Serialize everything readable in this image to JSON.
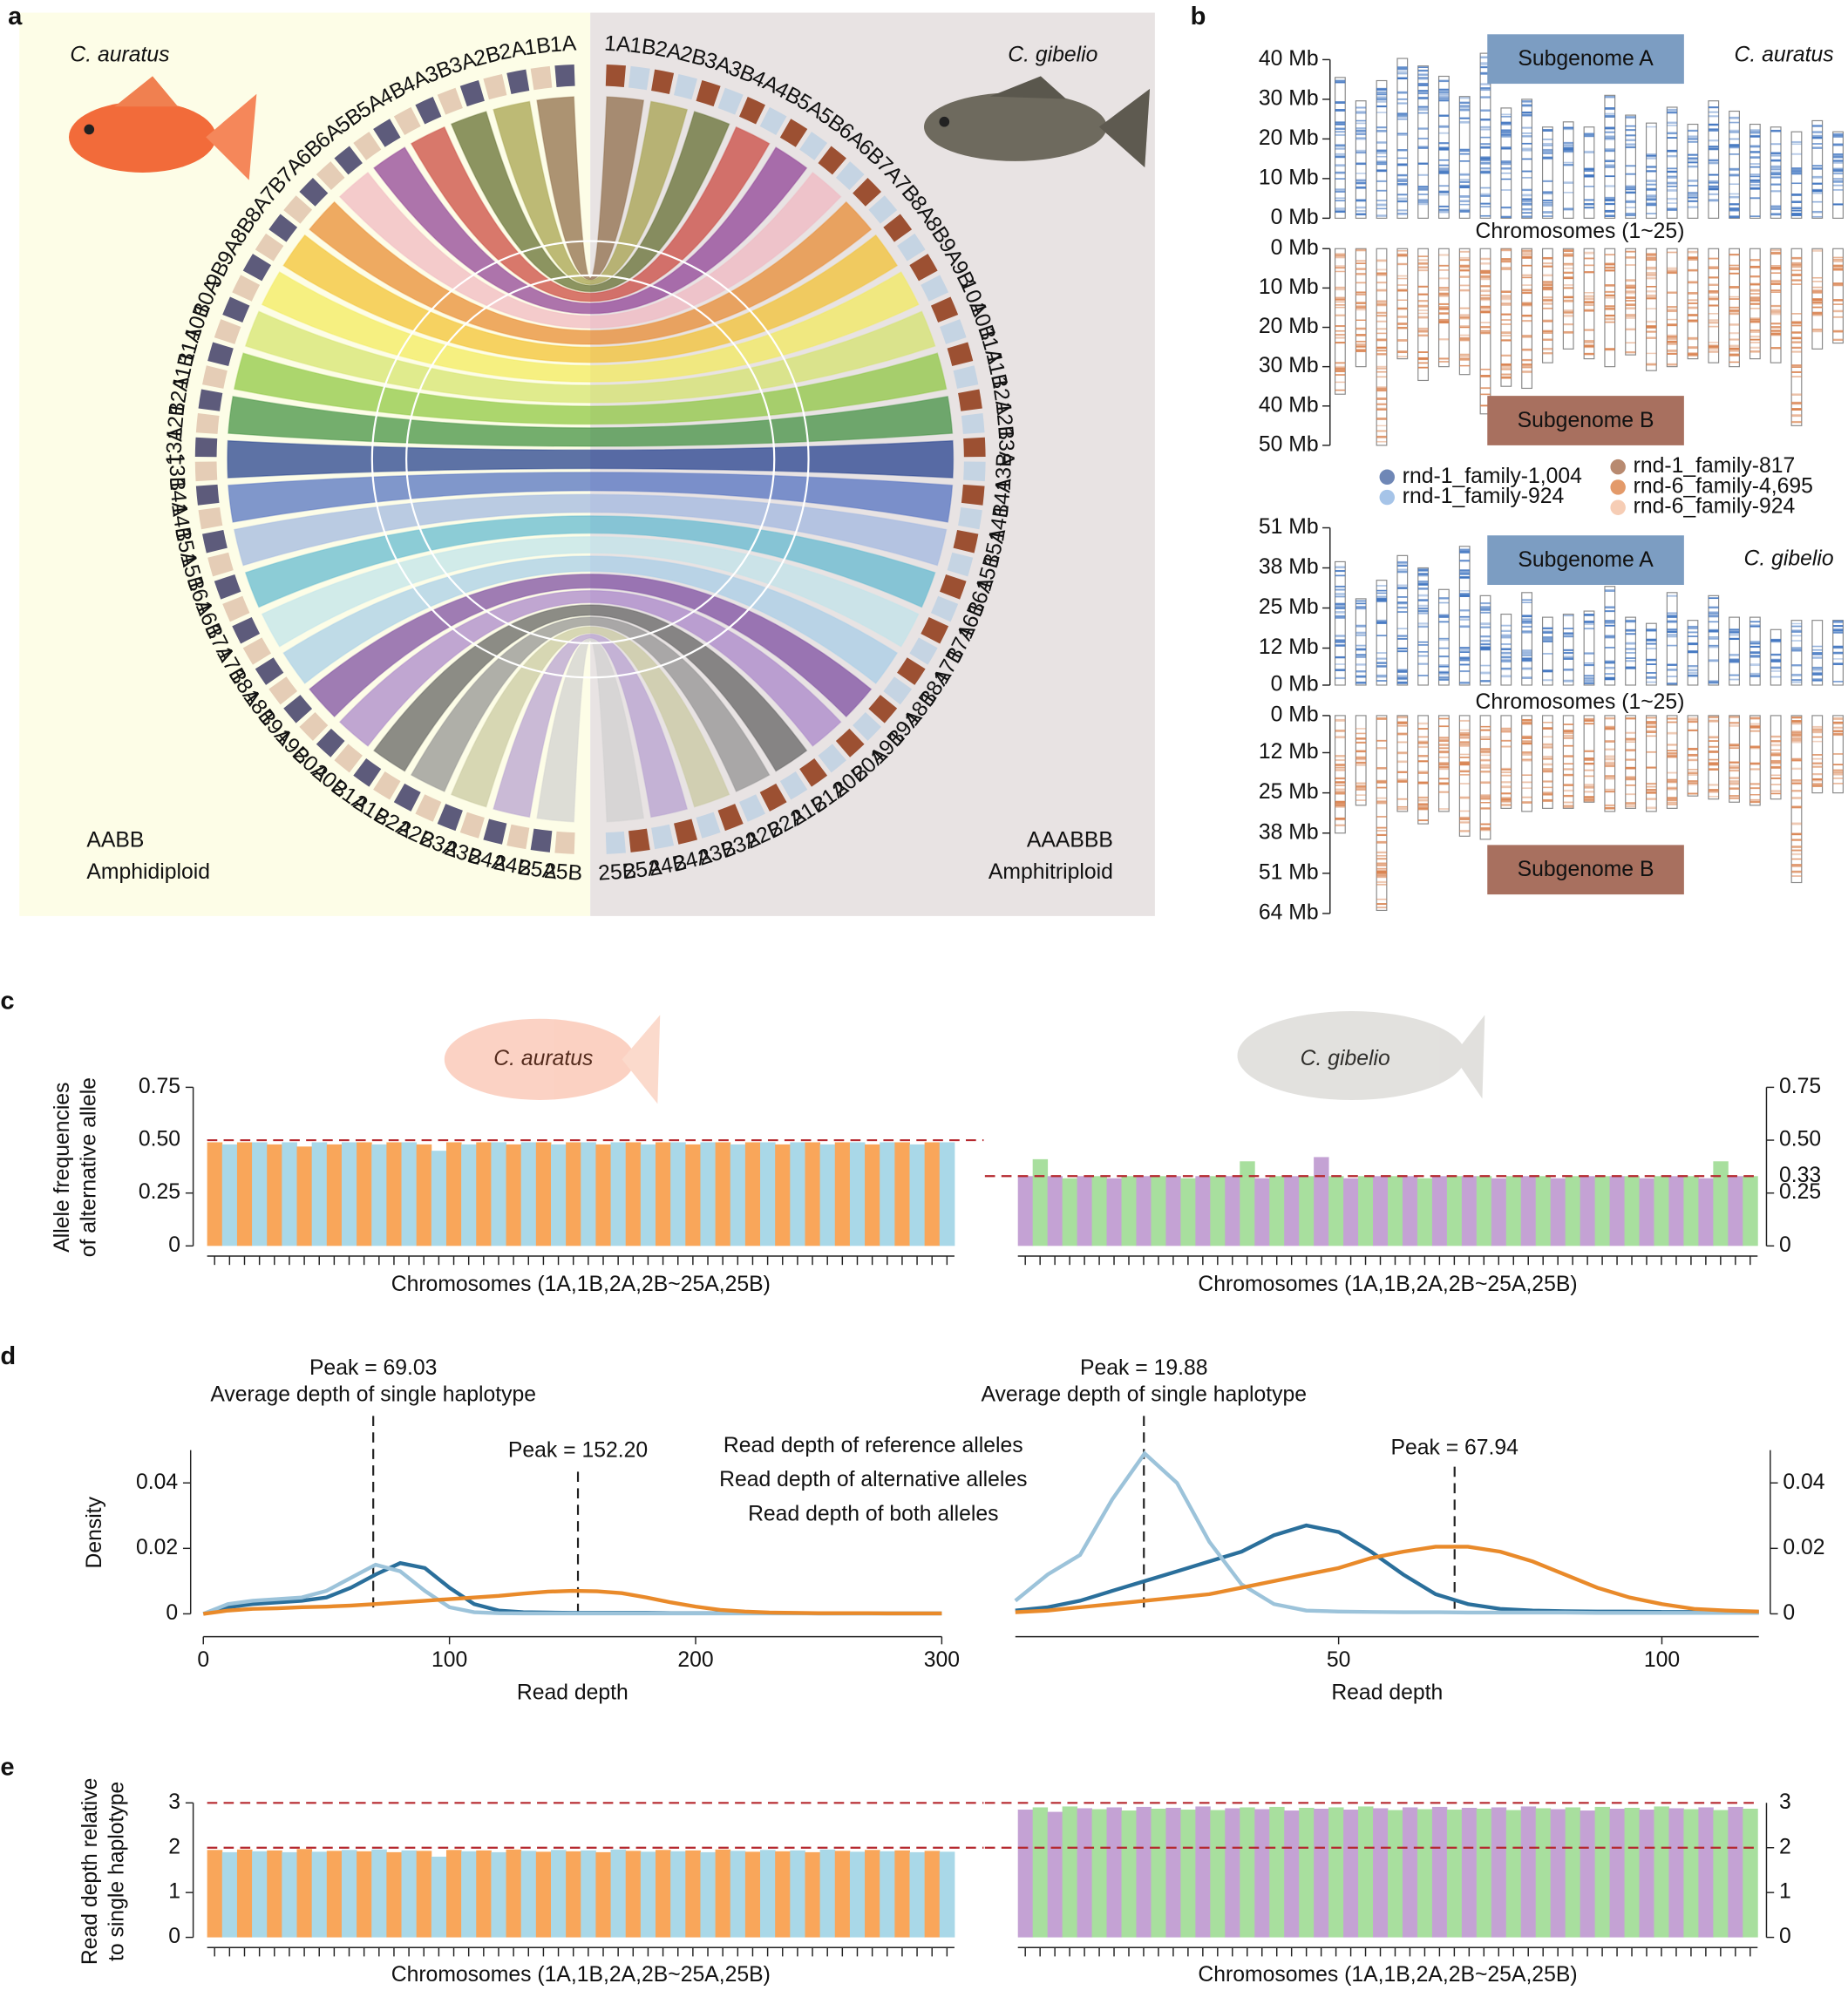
{
  "panel_labels": [
    "a",
    "b",
    "c",
    "d",
    "e"
  ],
  "chart_data": [
    {
      "type": "circos",
      "species": [
        "C. auratus",
        "C. gibelio"
      ],
      "ploidy": [
        [
          "AABB",
          "Amphidiploid"
        ],
        [
          "AAABBB",
          "Amphitriploid"
        ]
      ],
      "labels": [
        [
          "1A",
          "1B",
          "2A",
          "2B",
          "3A",
          "3B",
          "4A",
          "4B",
          "5A",
          "5B",
          "6A",
          "6B",
          "7A",
          "7B",
          "8A",
          "8B",
          "9A",
          "9B",
          "10A",
          "10B",
          "11A",
          "11B",
          "12A",
          "12B",
          "13A",
          "13B",
          "14A",
          "14B",
          "15A",
          "15B",
          "16A",
          "16B",
          "17A",
          "17B",
          "18A",
          "18B",
          "19A",
          "19B",
          "20A",
          "20B",
          "21A",
          "21B",
          "22A",
          "22B",
          "23A",
          "23B",
          "24A",
          "24B",
          "25A",
          "25B"
        ],
        [
          "1A",
          "1B",
          "2A",
          "2B",
          "3A",
          "3B",
          "4A",
          "4B",
          "5A",
          "5B",
          "6A",
          "6B",
          "7A",
          "7B",
          "8A",
          "8B",
          "9A",
          "9B",
          "10A",
          "10B",
          "11A",
          "11B",
          "12A",
          "12B",
          "13A",
          "13B",
          "14A",
          "14B",
          "15A",
          "15B",
          "16A",
          "16B",
          "17A",
          "17B",
          "18A",
          "18B",
          "19A",
          "19B",
          "20A",
          "20B",
          "21A",
          "21B",
          "22A",
          "22B",
          "23A",
          "23B",
          "24A",
          "24B",
          "25A",
          "25B"
        ]
      ],
      "segment_colors": [
        [
          "#5d5b7b",
          "#e5cdb6"
        ],
        [
          "#9c5032",
          "#c5d4e3"
        ]
      ],
      "link_colors": [
        "#8c6a45",
        "#a3a04a",
        "#5f6b2c",
        "#c9443c",
        "#8e3f94",
        "#f0b7c0",
        "#e8892e",
        "#f2c12e",
        "#f3ea5a",
        "#d4e36b",
        "#8cc63f",
        "#3f8f3f",
        "#1e3c8c",
        "#4f6fc0",
        "#9fb7e0",
        "#5fb8d0",
        "#bfe3ea",
        "#a6cde8",
        "#7a4aa0",
        "#a784c9",
        "#606060",
        "#909090",
        "#c8c8a0",
        "#b5a0d0",
        "#d0d0d0"
      ],
      "backgrounds": [
        "#fdfde7",
        "#e8e3e3"
      ]
    },
    {
      "type": "ideogram",
      "title": "C. auratus",
      "xlabel": "Chromosomes (1~25)",
      "panels": [
        {
          "name": "Subgenome A",
          "color": "#7c9dc2",
          "band_color": "#3f74c0",
          "ylim": [
            0,
            40
          ],
          "yticks": [
            {
              "value": 0,
              "label": "0 Mb"
            },
            {
              "value": 10,
              "label": "10 Mb"
            },
            {
              "value": 20,
              "label": "20 Mb"
            },
            {
              "value": 30,
              "label": "30 Mb"
            },
            {
              "value": 40,
              "label": "40 Mb"
            }
          ],
          "values": [
            35.5,
            29.6,
            34.7,
            40.3,
            38.4,
            35.8,
            30.7,
            41.6,
            27.8,
            30,
            23,
            24.3,
            23,
            31,
            26,
            24,
            28,
            23.7,
            29.6,
            27,
            23.7,
            23,
            21.8,
            24.6,
            21.8
          ]
        },
        {
          "name": "Subgenome B",
          "color": "#a8705f",
          "band_color": "#d9824f",
          "ylim": [
            0,
            50
          ],
          "yticks": [
            {
              "value": 0,
              "label": "0 Mb"
            },
            {
              "value": 10,
              "label": "10 Mb"
            },
            {
              "value": 20,
              "label": "20 Mb"
            },
            {
              "value": 30,
              "label": "30 Mb"
            },
            {
              "value": 40,
              "label": "40 Mb"
            },
            {
              "value": 50,
              "label": "50 Mb"
            }
          ],
          "values": [
            37,
            30,
            50,
            28,
            33.5,
            30,
            32,
            42,
            35,
            35.5,
            29,
            25.5,
            28,
            30,
            27,
            31,
            30,
            28,
            29,
            30,
            28,
            29,
            45,
            25.5,
            24
          ]
        }
      ],
      "legend": [
        {
          "name": "rnd-1_family-1,004",
          "color": "#6f87b6"
        },
        {
          "name": "rnd-1_family-924",
          "color": "#a6c4e8"
        },
        {
          "name": "rnd-1_family-817",
          "color": "#b88a70"
        },
        {
          "name": "rnd-6_family-4,695",
          "color": "#e39a6a"
        },
        {
          "name": "rnd-6_family-924",
          "color": "#f6cdb5"
        }
      ]
    },
    {
      "type": "ideogram",
      "title": "C. gibelio",
      "xlabel": "Chromosomes (1~25)",
      "panels": [
        {
          "name": "Subgenome A",
          "color": "#7c9dc2",
          "band_color": "#3f74c0",
          "ylim": [
            0,
            51
          ],
          "yticks": [
            {
              "value": 0,
              "label": "0 Mb"
            },
            {
              "value": 12,
              "label": "12 Mb"
            },
            {
              "value": 25,
              "label": "25 Mb"
            },
            {
              "value": 38,
              "label": "38 Mb"
            },
            {
              "value": 51,
              "label": "51 Mb"
            }
          ],
          "values": [
            40,
            28,
            34,
            42,
            38,
            31,
            45,
            29,
            23,
            30,
            22,
            23,
            24,
            32,
            22,
            20,
            30,
            21,
            29,
            22,
            22,
            18,
            21,
            21,
            21
          ]
        },
        {
          "name": "Subgenome B",
          "color": "#a8705f",
          "band_color": "#d9824f",
          "ylim": [
            0,
            64
          ],
          "yticks": [
            {
              "value": 0,
              "label": "0 Mb"
            },
            {
              "value": 12,
              "label": "12 Mb"
            },
            {
              "value": 25,
              "label": "25 Mb"
            },
            {
              "value": 38,
              "label": "38 Mb"
            },
            {
              "value": 51,
              "label": "51 Mb"
            },
            {
              "value": 64,
              "label": "64 Mb"
            }
          ],
          "values": [
            38,
            29,
            63,
            31,
            35,
            31,
            39,
            40,
            30,
            31,
            30,
            30,
            28,
            31,
            30,
            31,
            30,
            26,
            27,
            28,
            29,
            27,
            54,
            25,
            25
          ]
        }
      ]
    },
    {
      "type": "bar",
      "title": "C. auratus",
      "ylabel": [
        "Allele frequencies",
        "of alternative allele"
      ],
      "xlabel": "Chromosomes (1A,1B,2A,2B~25A,25B)",
      "ylim": [
        0,
        0.75
      ],
      "yticks": [
        0,
        0.25,
        0.75
      ],
      "ref_lines": [
        {
          "value": 0.5,
          "label": "0.50"
        }
      ],
      "colors": [
        "#f9a65a",
        "#a9d8e8"
      ],
      "values": [
        0.49,
        0.48,
        0.49,
        0.49,
        0.48,
        0.49,
        0.47,
        0.49,
        0.48,
        0.49,
        0.49,
        0.48,
        0.49,
        0.49,
        0.48,
        0.45,
        0.49,
        0.48,
        0.49,
        0.49,
        0.48,
        0.49,
        0.49,
        0.48,
        0.49,
        0.49,
        0.48,
        0.49,
        0.49,
        0.48,
        0.49,
        0.49,
        0.48,
        0.49,
        0.49,
        0.48,
        0.49,
        0.49,
        0.48,
        0.49,
        0.49,
        0.48,
        0.49,
        0.49,
        0.48,
        0.49,
        0.49,
        0.48,
        0.49,
        0.49
      ]
    },
    {
      "type": "bar",
      "title": "C. gibelio",
      "xlabel": "Chromosomes (1A,1B,2A,2B~25A,25B)",
      "ylim": [
        0,
        0.75
      ],
      "yticks": [
        0,
        0.25,
        {
          "value": 0.5,
          "label": "0.50"
        },
        0.75
      ],
      "ref_lines": [
        {
          "value": 0.33,
          "label": "0.33"
        }
      ],
      "colors": [
        "#c4a2d4",
        "#a8df9e"
      ],
      "values": [
        0.33,
        0.41,
        0.33,
        0.32,
        0.33,
        0.33,
        0.32,
        0.33,
        0.33,
        0.33,
        0.33,
        0.32,
        0.33,
        0.33,
        0.33,
        0.4,
        0.32,
        0.33,
        0.33,
        0.33,
        0.42,
        0.33,
        0.32,
        0.33,
        0.33,
        0.33,
        0.33,
        0.32,
        0.33,
        0.33,
        0.33,
        0.33,
        0.32,
        0.33,
        0.33,
        0.33,
        0.32,
        0.33,
        0.33,
        0.33,
        0.33,
        0.33,
        0.32,
        0.33,
        0.33,
        0.33,
        0.32,
        0.4,
        0.33,
        0.33
      ]
    },
    {
      "type": "line",
      "ylabel": "Density",
      "xlabel": "Read depth",
      "xlim": [
        0,
        300
      ],
      "xticks": [
        0,
        100,
        200,
        300
      ],
      "ylim": [
        0,
        0.05
      ],
      "yticks": [
        0,
        0.02,
        0.04
      ],
      "x": [
        0,
        10,
        20,
        30,
        40,
        50,
        60,
        70,
        80,
        90,
        100,
        110,
        120,
        130,
        140,
        150,
        160,
        170,
        180,
        190,
        200,
        210,
        220,
        230,
        240,
        250,
        260,
        270,
        280,
        290,
        300
      ],
      "series": [
        {
          "name": "Read depth of reference alleles",
          "color": "#2a6f9b",
          "values": [
            0,
            0.002,
            0.003,
            0.0035,
            0.004,
            0.005,
            0.008,
            0.012,
            0.0155,
            0.014,
            0.008,
            0.003,
            0.001,
            0.0005,
            0.0004,
            0.0003,
            0.0003,
            0.0003,
            0.0003,
            0.0002,
            0.0002,
            0.0002,
            0.0002,
            0.0002,
            0.0002,
            0.0001,
            0.0001,
            0.0001,
            0.0001,
            0.0001,
            0.0001
          ]
        },
        {
          "name": "Read depth of alternative alleles",
          "color": "#9cc3da",
          "values": [
            0,
            0.003,
            0.004,
            0.0045,
            0.005,
            0.007,
            0.011,
            0.015,
            0.013,
            0.007,
            0.002,
            0.0005,
            0.0002,
            0.0001,
            0.0001,
            0.0001,
            0.0001,
            0.0001,
            0.0001,
            0.0001,
            0.0001,
            0.0001,
            0.0001,
            0.0001,
            0.0001,
            0.0001,
            0.0001,
            0.0001,
            0.0001,
            0.0001,
            0.0001
          ]
        },
        {
          "name": "Read depth of both alleles",
          "color": "#e98a2a",
          "values": [
            0,
            0.001,
            0.0015,
            0.0017,
            0.002,
            0.0022,
            0.0025,
            0.003,
            0.0035,
            0.004,
            0.0045,
            0.005,
            0.0055,
            0.0062,
            0.0068,
            0.007,
            0.0069,
            0.0063,
            0.005,
            0.0035,
            0.0022,
            0.0012,
            0.0007,
            0.0004,
            0.0003,
            0.0002,
            0.0002,
            0.0002,
            0.0001,
            0.0001,
            0.0001
          ]
        }
      ],
      "annotations": [
        {
          "x": 69.03,
          "text": [
            "Peak = 69.03",
            "Average depth of single haplotype"
          ]
        },
        {
          "x": 152.2,
          "text": [
            "Peak = 152.20"
          ]
        }
      ]
    },
    {
      "type": "line",
      "xlabel": "Read depth",
      "xlim": [
        0,
        115
      ],
      "xticks": [
        50,
        100
      ],
      "ylim": [
        0,
        0.05
      ],
      "yticks": [
        0,
        0.02,
        0.04
      ],
      "x": [
        0,
        5,
        10,
        15,
        20,
        25,
        30,
        35,
        40,
        45,
        50,
        55,
        60,
        65,
        70,
        75,
        80,
        85,
        90,
        95,
        100,
        105,
        110,
        115
      ],
      "series": [
        {
          "color": "#2a6f9b",
          "values": [
            0.001,
            0.002,
            0.004,
            0.007,
            0.01,
            0.013,
            0.016,
            0.019,
            0.024,
            0.027,
            0.025,
            0.019,
            0.012,
            0.006,
            0.003,
            0.0015,
            0.001,
            0.0008,
            0.0007,
            0.0007,
            0.0006,
            0.0006,
            0.0005,
            0.0005
          ]
        },
        {
          "color": "#9cc3da",
          "values": [
            0.004,
            0.012,
            0.018,
            0.035,
            0.049,
            0.04,
            0.022,
            0.009,
            0.003,
            0.001,
            0.0007,
            0.0006,
            0.0005,
            0.0005,
            0.0004,
            0.0004,
            0.0004,
            0.0004,
            0.0003,
            0.0003,
            0.0003,
            0.0003,
            0.0003,
            0.0003
          ]
        },
        {
          "color": "#e98a2a",
          "values": [
            0.0005,
            0.001,
            0.002,
            0.003,
            0.004,
            0.005,
            0.006,
            0.008,
            0.01,
            0.012,
            0.014,
            0.017,
            0.019,
            0.0205,
            0.0205,
            0.019,
            0.016,
            0.012,
            0.008,
            0.005,
            0.003,
            0.0015,
            0.001,
            0.0007
          ]
        }
      ],
      "annotations": [
        {
          "x": 19.88,
          "text": [
            "Peak = 19.88",
            "Average depth of single haplotype"
          ]
        },
        {
          "x": 67.94,
          "text": [
            "Peak = 67.94"
          ]
        }
      ]
    },
    {
      "type": "bar",
      "ylabel": [
        "Read depth relative",
        "to single haplotype"
      ],
      "xlabel": "Chromosomes (1A,1B,2A,2B~25A,25B)",
      "ylim": [
        0,
        3
      ],
      "yticks": [
        0,
        1,
        3
      ],
      "ref_lines": [
        {
          "value": 2,
          "label": "2"
        },
        {
          "value": 3
        }
      ],
      "colors": [
        "#f9a65a",
        "#a9d8e8"
      ],
      "values": [
        1.95,
        1.9,
        1.96,
        1.92,
        1.94,
        1.9,
        1.97,
        1.91,
        1.93,
        1.95,
        1.92,
        1.96,
        1.9,
        1.94,
        1.93,
        1.8,
        1.95,
        1.92,
        1.94,
        1.9,
        1.96,
        1.93,
        1.91,
        1.95,
        1.92,
        1.94,
        1.9,
        1.96,
        1.93,
        1.91,
        1.95,
        1.92,
        1.94,
        1.9,
        1.96,
        1.93,
        1.91,
        1.95,
        1.92,
        1.94,
        1.9,
        1.96,
        1.93,
        1.91,
        1.95,
        1.92,
        1.94,
        1.9,
        1.93,
        1.91
      ]
    },
    {
      "type": "bar",
      "xlabel": "Chromosomes (1A,1B,2A,2B~25A,25B)",
      "ylim": [
        0,
        3
      ],
      "yticks": [
        0,
        1,
        2
      ],
      "ref_lines": [
        {
          "value": 3,
          "label": "3"
        },
        {
          "value": 2
        }
      ],
      "colors": [
        "#c4a2d4",
        "#a8df9e"
      ],
      "values": [
        2.85,
        2.9,
        2.8,
        2.92,
        2.88,
        2.86,
        2.9,
        2.83,
        2.91,
        2.87,
        2.89,
        2.85,
        2.92,
        2.84,
        2.88,
        2.9,
        2.86,
        2.91,
        2.83,
        2.89,
        2.87,
        2.9,
        2.85,
        2.92,
        2.88,
        2.84,
        2.9,
        2.86,
        2.91,
        2.85,
        2.89,
        2.87,
        2.9,
        2.84,
        2.92,
        2.88,
        2.86,
        2.9,
        2.83,
        2.91,
        2.87,
        2.89,
        2.85,
        2.92,
        2.88,
        2.86,
        2.9,
        2.84,
        2.91,
        2.87
      ]
    }
  ]
}
